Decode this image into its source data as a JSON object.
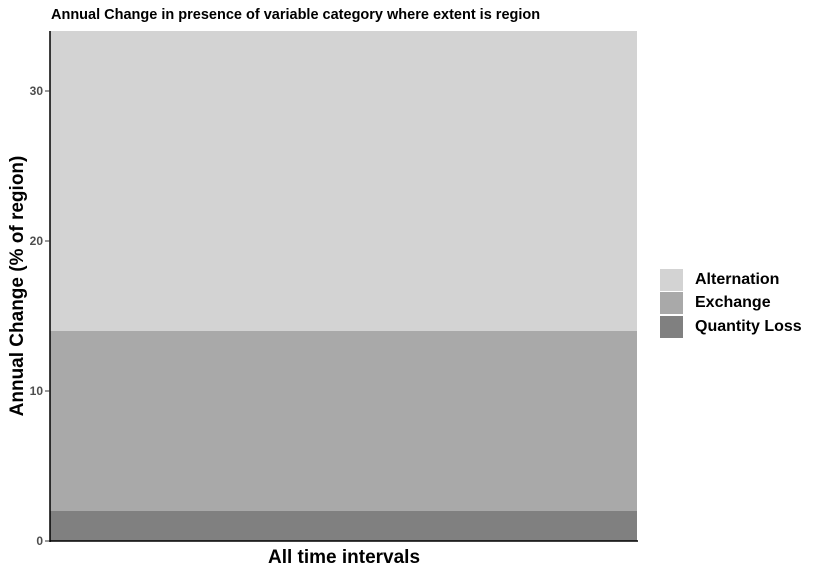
{
  "chart_data": {
    "type": "bar",
    "stacked": true,
    "title": "Annual Change in presence of variable category where extent is region",
    "xlabel": "All time intervals",
    "ylabel": "Annual Change (% of region)",
    "categories": [
      ""
    ],
    "series": [
      {
        "name": "Quantity Loss",
        "values": [
          2
        ],
        "color": "#808080"
      },
      {
        "name": "Exchange",
        "values": [
          12
        ],
        "color": "#a9a9a9"
      },
      {
        "name": "Alternation",
        "values": [
          20
        ],
        "color": "#d3d3d3"
      }
    ],
    "yticks": [
      "0",
      "10",
      "20",
      "30"
    ],
    "ytick_values": [
      0,
      10,
      20,
      30
    ],
    "ylim": [
      0,
      34
    ],
    "grid": false,
    "legend_position": "right",
    "legend_order": [
      "Alternation",
      "Exchange",
      "Quantity Loss"
    ]
  }
}
